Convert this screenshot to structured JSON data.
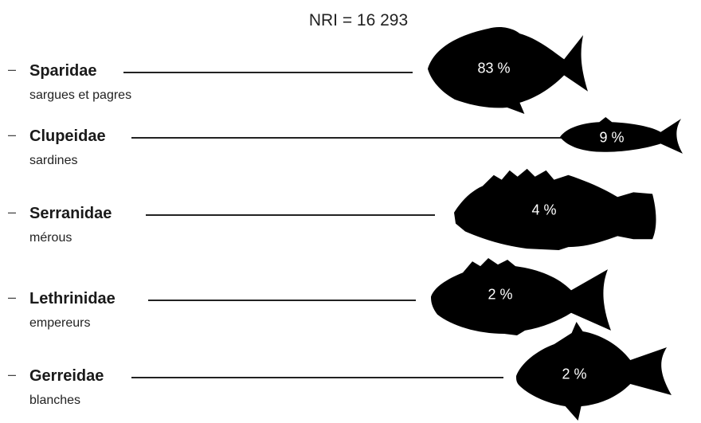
{
  "title": "NRI = 16 293",
  "chart_data": {
    "type": "bar",
    "title": "NRI = 16 293",
    "categories": [
      "Sparidae",
      "Clupeidae",
      "Serranidae",
      "Lethrinidae",
      "Gerreidae"
    ],
    "subtitles": [
      "sargues et pagres",
      "sardines",
      "mérous",
      "empereurs",
      "blanches"
    ],
    "values": [
      83,
      9,
      4,
      2,
      2
    ],
    "value_labels": [
      "83 %",
      "9 %",
      "4 %",
      "2 %",
      "2 %"
    ],
    "unit": "%",
    "fill_color": "#000000",
    "label_color": "#ffffff"
  }
}
